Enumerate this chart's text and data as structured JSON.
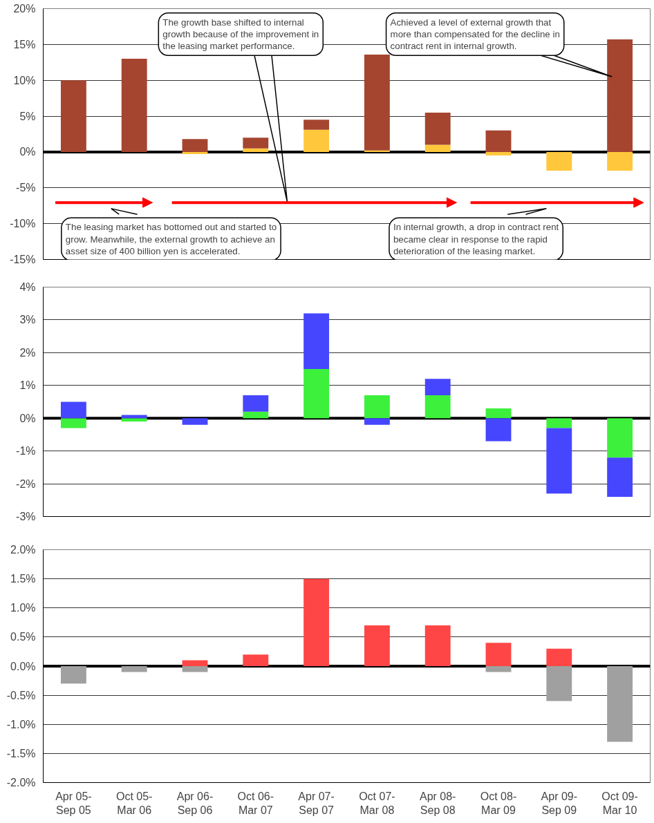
{
  "chart_data": [
    {
      "type": "bar",
      "stacked": true,
      "tick_labels": "y",
      "grid": "y",
      "categories": [
        null,
        null,
        null,
        null,
        null,
        null,
        null,
        null,
        null,
        null
      ],
      "series": [
        {
          "color": "#ffc83c",
          "values": [
            0,
            0,
            -0.3,
            0.5,
            3.1,
            0.2,
            1.0,
            -0.5,
            -2.6,
            -2.6
          ]
        },
        {
          "color": "#a5452f",
          "values": [
            10.0,
            13.0,
            1.8,
            1.5,
            1.4,
            13.4,
            4.5,
            3.0,
            0,
            15.7
          ]
        }
      ],
      "ylim": [
        -15,
        20
      ],
      "yticks": [
        {
          "value": -15,
          "label": "-15%"
        },
        {
          "value": -10,
          "label": "-10%"
        },
        {
          "value": -5,
          "label": "-5%"
        },
        {
          "value": 0,
          "label": "0%"
        },
        {
          "value": 5,
          "label": "5%"
        },
        {
          "value": 10,
          "label": "10%"
        },
        {
          "value": 15,
          "label": "15%"
        },
        {
          "value": 20,
          "label": "20%"
        }
      ],
      "ref_lines": [
        {
          "axis": "y",
          "value": 0,
          "color": "#000000"
        }
      ],
      "annotations": [
        "The growth base shifted to internal growth because of the improvement in the leasing market performance.",
        "Achieved a level of external growth that more than compensated for the decline in contract rent in internal growth.",
        "The leasing market has bottomed out and started to grow. Meanwhile, the external growth to achieve an asset size of 400 billion yen is accelerated.",
        "In internal growth, a drop in contract rent became clear in response to the rapid deterioration of the leasing market."
      ]
    },
    {
      "type": "bar",
      "stacked": true,
      "tick_labels": "y",
      "grid": "y",
      "categories": [
        null,
        null,
        null,
        null,
        null,
        null,
        null,
        null,
        null,
        null
      ],
      "series": [
        {
          "color": "#3cf03c",
          "values": [
            -0.3,
            -0.1,
            0,
            0.2,
            1.5,
            0.7,
            0.7,
            0.3,
            -0.3,
            -1.2
          ]
        },
        {
          "color": "#4646ff",
          "values": [
            0.5,
            0.1,
            -0.2,
            0.5,
            1.7,
            -0.2,
            0.5,
            -0.7,
            -2.0,
            -1.2
          ]
        }
      ],
      "ylim": [
        -3,
        4
      ],
      "yticks": [
        {
          "value": -3,
          "label": "-3%"
        },
        {
          "value": -2,
          "label": "-2%"
        },
        {
          "value": -1,
          "label": "-1%"
        },
        {
          "value": 0,
          "label": "0%"
        },
        {
          "value": 1,
          "label": "1%"
        },
        {
          "value": 2,
          "label": "2%"
        },
        {
          "value": 3,
          "label": "3%"
        },
        {
          "value": 4,
          "label": "4%"
        }
      ],
      "ref_lines": [
        {
          "axis": "y",
          "value": 0,
          "color": "#000000"
        }
      ]
    },
    {
      "type": "bar",
      "stacked": true,
      "grid": "y",
      "categories": [
        "Apr 05-\nSep 05",
        "Oct 05-\nMar 06",
        "Apr 06-\nSep 06",
        "Oct 06-\nMar 07",
        "Apr 07-\nSep 07",
        "Oct 07-\nMar 08",
        "Apr 08-\nSep 08",
        "Oct 08-\nMar 09",
        "Apr 09-\nSep 09",
        "Oct 09-\nMar 10"
      ],
      "series": [
        {
          "color": "#ff4646",
          "values": [
            0,
            0,
            0.1,
            0.2,
            1.5,
            0.7,
            0.7,
            0.4,
            0.3,
            0
          ]
        },
        {
          "color": "#a0a0a0",
          "values": [
            -0.3,
            -0.1,
            -0.1,
            0,
            0,
            0,
            0,
            -0.1,
            -0.6,
            -1.3
          ]
        }
      ],
      "ylim": [
        -2,
        2
      ],
      "yticks": [
        {
          "value": -2,
          "label": "-2.0%"
        },
        {
          "value": -1.5,
          "label": "-1.5%"
        },
        {
          "value": -1,
          "label": "-1.0%"
        },
        {
          "value": -0.5,
          "label": "-0.5%"
        },
        {
          "value": 0,
          "label": "0.0%"
        },
        {
          "value": 0.5,
          "label": "0.5%"
        },
        {
          "value": 1,
          "label": "1.0%"
        },
        {
          "value": 1.5,
          "label": "1.5%"
        },
        {
          "value": 2,
          "label": "2.0%"
        }
      ],
      "ref_lines": [
        {
          "axis": "y",
          "value": 0,
          "color": "#000000"
        }
      ]
    }
  ]
}
